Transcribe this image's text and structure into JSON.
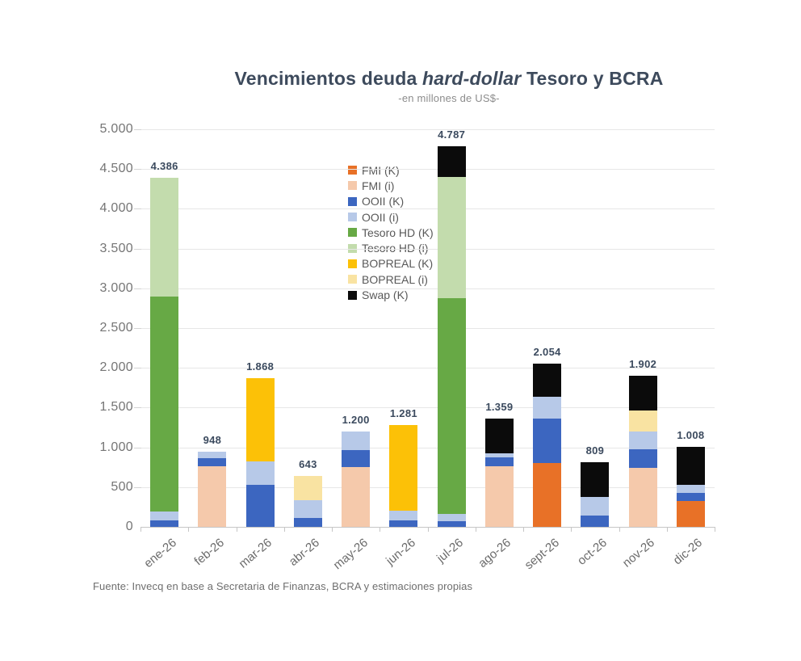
{
  "title": {
    "pre": "Vencimientos deuda ",
    "italic": "hard-dollar",
    "post": " Tesoro y BCRA"
  },
  "subtitle": "-en millones de US$-",
  "source": "Fuente: Invecq en base a Secretaria de Finanzas, BCRA y estimaciones propias",
  "chart_data": {
    "type": "bar",
    "stacked": true,
    "title": "Vencimientos deuda hard-dollar Tesoro y BCRA",
    "subtitle": "-en millones de US$-",
    "unit": "millones de US$",
    "grid": true,
    "legend_position": "inside-upper-middle",
    "ylim": [
      0,
      5000
    ],
    "y_tick_values": [
      0,
      500,
      1000,
      1500,
      2000,
      2500,
      3000,
      3500,
      4000,
      4500,
      5000
    ],
    "y_tick_labels": [
      "0",
      "500",
      "1.000",
      "1.500",
      "2.000",
      "2.500",
      "3.000",
      "3.500",
      "4.000",
      "4.500",
      "5.000"
    ],
    "categories": [
      "ene-26",
      "feb-26",
      "mar-26",
      "abr-26",
      "may-26",
      "jun-26",
      "jul-26",
      "ago-26",
      "sept-26",
      "oct-26",
      "nov-26",
      "dic-26"
    ],
    "totals": [
      4386,
      948,
      1868,
      643,
      1200,
      1281,
      4787,
      1359,
      2054,
      809,
      1902,
      1008
    ],
    "total_labels": [
      "4.386",
      "948",
      "1.868",
      "643",
      "1.200",
      "1.281",
      "4.787",
      "1.359",
      "2.054",
      "809",
      "1.902",
      "1.008"
    ],
    "series": [
      {
        "name": "FMI (K)",
        "color": "#e87127",
        "values": [
          0,
          0,
          0,
          0,
          0,
          0,
          0,
          0,
          800,
          0,
          0,
          330
        ]
      },
      {
        "name": "FMI (i)",
        "color": "#f5c9ab",
        "values": [
          0,
          760,
          0,
          0,
          750,
          0,
          0,
          760,
          0,
          0,
          745,
          0
        ]
      },
      {
        "name": "OOII (K)",
        "color": "#3c66c0",
        "values": [
          80,
          100,
          530,
          110,
          215,
          80,
          70,
          110,
          560,
          140,
          230,
          100
        ]
      },
      {
        "name": "OOII (i)",
        "color": "#b7c9e8",
        "values": [
          110,
          88,
          290,
          225,
          235,
          125,
          90,
          50,
          280,
          240,
          220,
          100
        ]
      },
      {
        "name": "Tesoro HD (K)",
        "color": "#67a945",
        "values": [
          2710,
          0,
          0,
          0,
          0,
          0,
          2720,
          0,
          0,
          0,
          0,
          0
        ]
      },
      {
        "name": "Tesoro HD (i)",
        "color": "#c3dcad",
        "values": [
          1486,
          0,
          0,
          0,
          0,
          0,
          1520,
          0,
          0,
          0,
          0,
          0
        ]
      },
      {
        "name": "BOPREAL (K)",
        "color": "#fcc107",
        "values": [
          0,
          0,
          1048,
          0,
          0,
          1076,
          0,
          0,
          0,
          0,
          0,
          0
        ]
      },
      {
        "name": "BOPREAL (i)",
        "color": "#f9e3a2",
        "values": [
          0,
          0,
          0,
          308,
          0,
          0,
          0,
          0,
          0,
          0,
          270,
          0
        ]
      },
      {
        "name": "Swap (K)",
        "color": "#0b0b0b",
        "values": [
          0,
          0,
          0,
          0,
          0,
          0,
          387,
          439,
          414,
          429,
          437,
          478
        ]
      }
    ]
  }
}
